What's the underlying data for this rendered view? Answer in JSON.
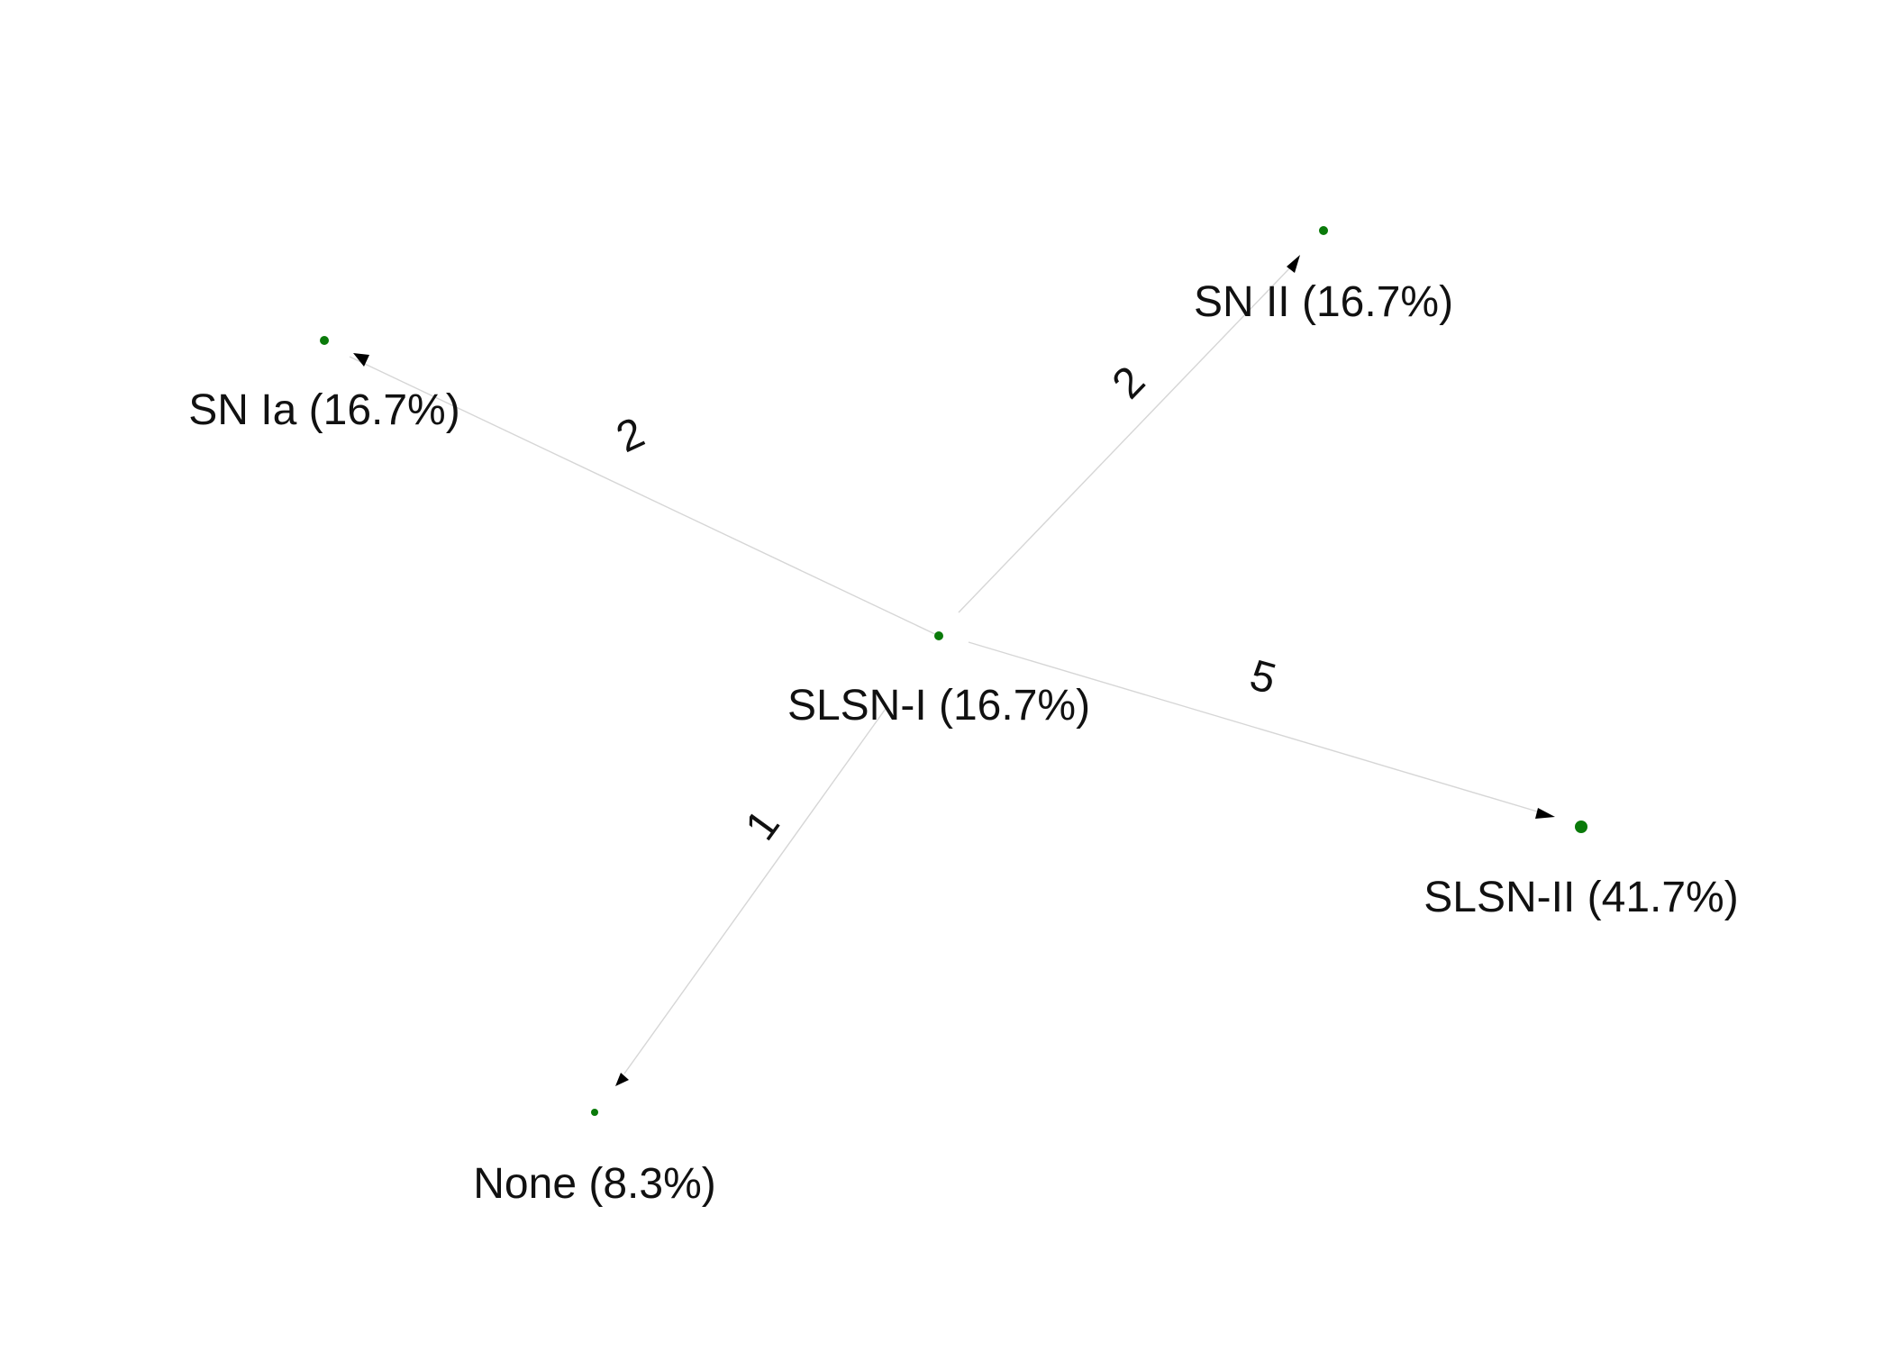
{
  "nodes": [
    {
      "id": "slsn_i",
      "label": "SLSN-I (16.7%)",
      "share": 16.7
    },
    {
      "id": "sn_ia",
      "label": "SN Ia (16.7%)",
      "share": 16.7
    },
    {
      "id": "sn_ii",
      "label": "SN II (16.7%)",
      "share": 16.7
    },
    {
      "id": "slsn_ii",
      "label": "SLSN-II (41.7%)",
      "share": 41.7
    },
    {
      "id": "none",
      "label": "None (8.3%)",
      "share": 8.3
    }
  ],
  "edges": [
    {
      "from": "slsn_i",
      "to": "sn_ia",
      "weight": "2"
    },
    {
      "from": "slsn_i",
      "to": "sn_ii",
      "weight": "2"
    },
    {
      "from": "slsn_i",
      "to": "slsn_ii",
      "weight": "5"
    },
    {
      "from": "slsn_i",
      "to": "none",
      "weight": "1"
    }
  ],
  "colors": {
    "node": "#0a7a0a",
    "edge": "#d6d6d6",
    "arrow": "#000000",
    "text": "#111111"
  }
}
